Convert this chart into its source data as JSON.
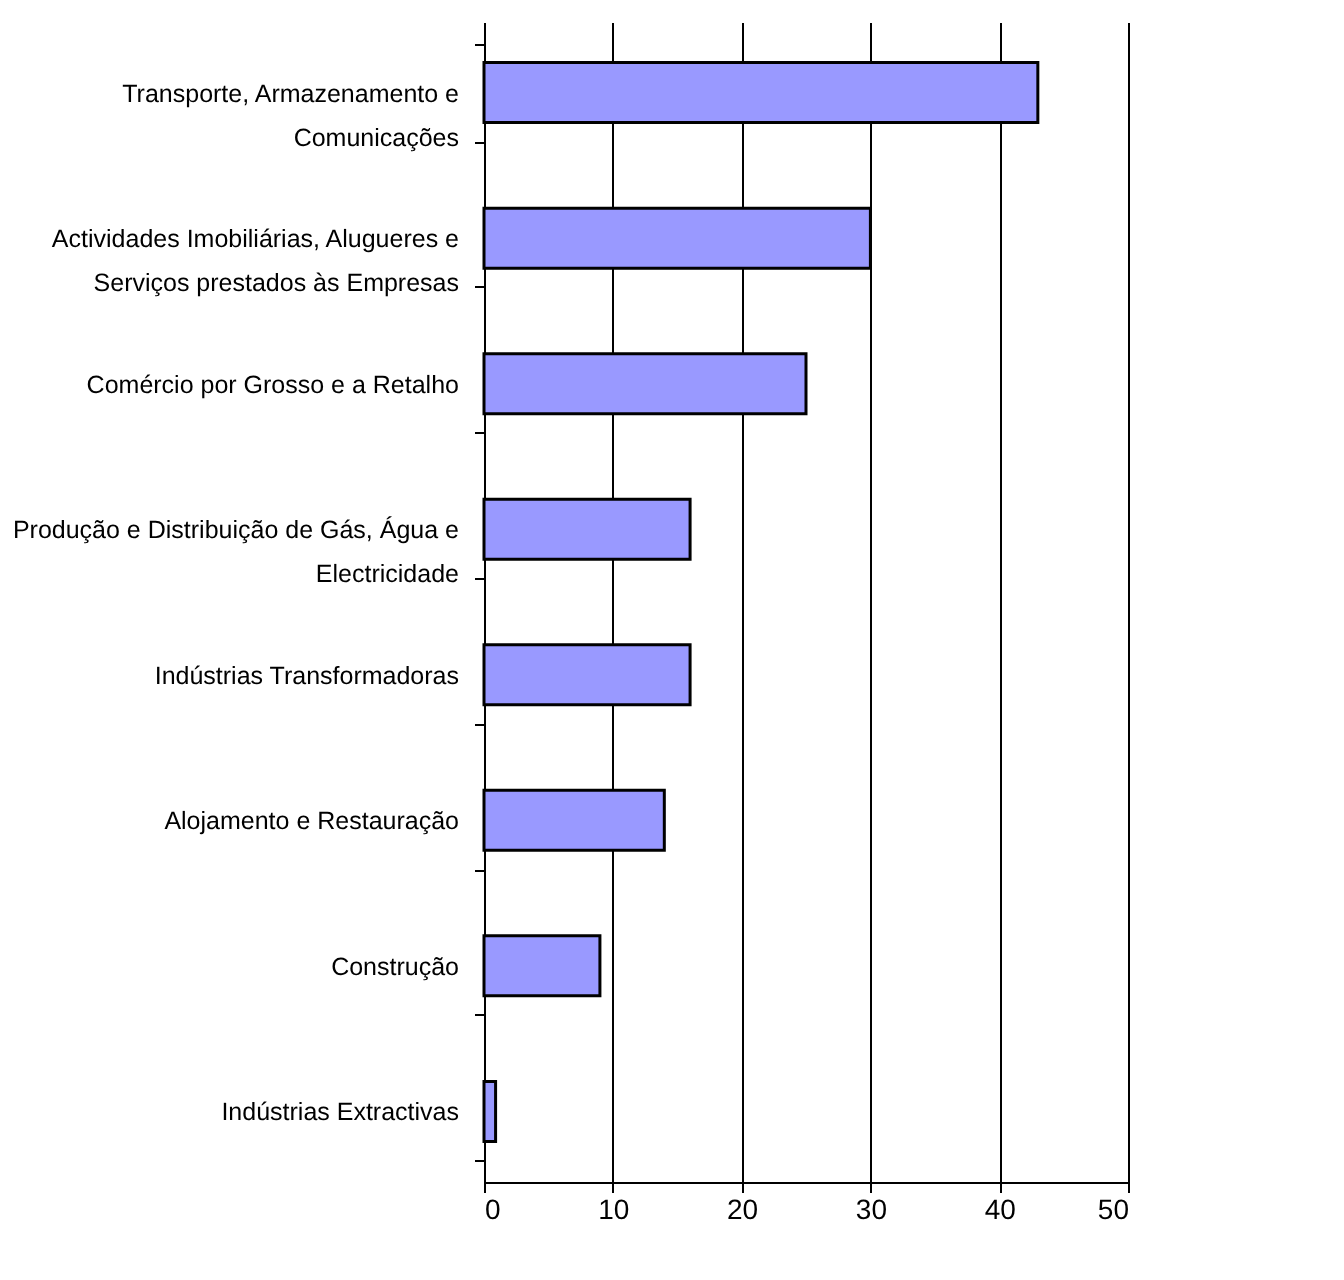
{
  "chart_data": {
    "type": "bar",
    "orientation": "horizontal",
    "categories": [
      "Transporte, Armazenamento e Comunicações",
      "Actividades Imobiliárias, Alugueres e Serviços prestados às Empresas",
      "Comércio por Grosso e a Retalho",
      "Produção e Distribuição de Gás, Água e Electricidade",
      "Indústrias Transformadoras",
      "Alojamento e Restauração",
      "Construção",
      "Indústrias Extractivas"
    ],
    "values": [
      43,
      30,
      25,
      16,
      16,
      14,
      9,
      0.9
    ],
    "color": "#9999ff",
    "xlim": [
      0,
      50
    ],
    "xticks": [
      0,
      10,
      20,
      30,
      40,
      50
    ],
    "grid": "x"
  }
}
